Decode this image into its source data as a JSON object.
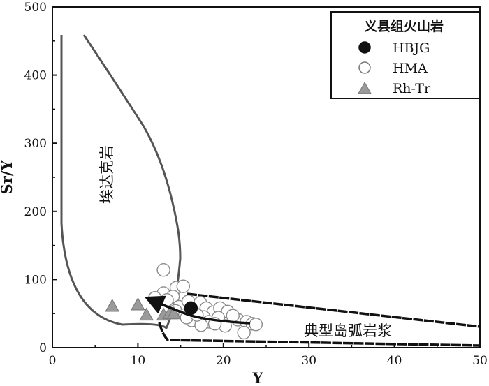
{
  "chart_data": {
    "type": "scatter",
    "xlabel": "Y",
    "ylabel": "Sr/Y",
    "xlim": [
      0,
      50
    ],
    "ylim": [
      0,
      500
    ],
    "x_ticks": [
      "0",
      "10",
      "20",
      "30",
      "40",
      "50"
    ],
    "y_ticks": [
      "0",
      "100",
      "200",
      "300",
      "400",
      "500"
    ],
    "legend": {
      "title": "义县组火山岩",
      "placement": "top-right",
      "entries": [
        "HBJG",
        "HMA",
        "Rh-Tr"
      ]
    },
    "series": [
      {
        "name": "HBJG",
        "marker": "filled-circle",
        "color": "#111111",
        "points": [
          [
            16.2,
            58
          ]
        ]
      },
      {
        "name": "HMA",
        "marker": "open-circle",
        "color": "#ffffff",
        "points": [
          [
            13.0,
            114
          ],
          [
            13.0,
            80
          ],
          [
            14.5,
            88
          ],
          [
            15.3,
            90
          ],
          [
            14.1,
            75
          ],
          [
            12.0,
            73
          ],
          [
            13.4,
            70
          ],
          [
            14.8,
            60
          ],
          [
            15.9,
            68
          ],
          [
            14.4,
            54
          ],
          [
            15.5,
            48
          ],
          [
            16.7,
            55
          ],
          [
            17.3,
            66
          ],
          [
            18.0,
            58
          ],
          [
            18.8,
            52
          ],
          [
            19.6,
            58
          ],
          [
            20.5,
            53
          ],
          [
            17.7,
            45
          ],
          [
            16.3,
            40
          ],
          [
            18.3,
            38
          ],
          [
            19.4,
            44
          ],
          [
            20.2,
            32
          ],
          [
            21.7,
            41
          ],
          [
            22.7,
            38
          ],
          [
            23.4,
            35
          ],
          [
            22.4,
            22
          ],
          [
            17.4,
            33
          ],
          [
            19.0,
            35
          ],
          [
            23.8,
            34
          ],
          [
            15.7,
            44
          ],
          [
            16.9,
            48
          ],
          [
            21.1,
            47
          ]
        ]
      },
      {
        "name": "Rh-Tr",
        "marker": "triangle",
        "color": "#9a9a9a",
        "points": [
          [
            7.0,
            62
          ],
          [
            10.0,
            64
          ],
          [
            11.0,
            49
          ],
          [
            13.0,
            49
          ],
          [
            13.7,
            51
          ],
          [
            14.2,
            51
          ]
        ]
      }
    ],
    "regions": [
      {
        "label": "埃达克岩"
      },
      {
        "label": "典型岛弧岩浆"
      }
    ],
    "colors": {
      "adakite_outline": "#555555",
      "arc_outline": "#111111",
      "arrow": "#111111"
    },
    "grid": false
  }
}
